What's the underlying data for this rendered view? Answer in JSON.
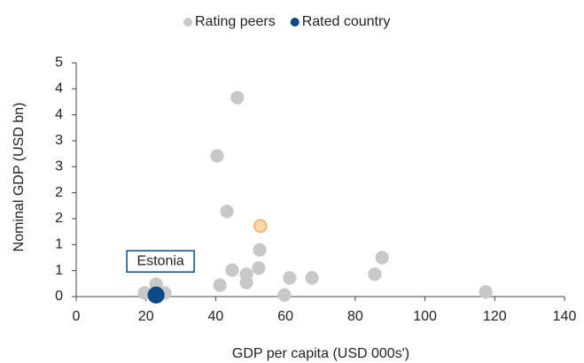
{
  "chart_data": {
    "type": "scatter",
    "xlabel": "GDP per capita (USD 000s')",
    "ylabel": "Nominal GDP (USD bn)",
    "xlim": [
      0,
      140
    ],
    "xticks": [
      0,
      20,
      40,
      60,
      80,
      100,
      120,
      140
    ],
    "ylim": [
      0,
      4.5
    ],
    "yticks": [
      0,
      {
        "value": 0.5,
        "label": "1"
      },
      1,
      {
        "value": 1.5,
        "label": "2"
      },
      2,
      {
        "value": 2.5,
        "label": "3"
      },
      3,
      {
        "value": 3.5,
        "label": "4"
      },
      4,
      {
        "value": 4.5,
        "label": "5"
      }
    ],
    "grid": false,
    "legend": "top",
    "series": [
      {
        "name": "Rating peers",
        "color": "#c8c8c8",
        "x": [
          46.2,
          40.4,
          43.2,
          52.6,
          87.7,
          44.7,
          52.3,
          48.8,
          85.6,
          67.6,
          61.2,
          41.2,
          48.8,
          22.9,
          19.6,
          25.4,
          59.7,
          117.4,
          52.8
        ],
        "values": [
          3.83,
          2.71,
          1.64,
          0.9,
          0.75,
          0.51,
          0.55,
          0.43,
          0.43,
          0.36,
          0.36,
          0.22,
          0.27,
          0.24,
          0.07,
          0.07,
          0.03,
          0.09,
          1.36
        ],
        "point_colors": [
          "#c8c8c8",
          "#c8c8c8",
          "#c8c8c8",
          "#c8c8c8",
          "#c8c8c8",
          "#c8c8c8",
          "#c8c8c8",
          "#c8c8c8",
          "#c8c8c8",
          "#c8c8c8",
          "#c8c8c8",
          "#c8c8c8",
          "#c8c8c8",
          "#c8c8c8",
          "#c8c8c8",
          "#c8c8c8",
          "#c8c8c8",
          "#c8c8c8",
          "#fbd7a8"
        ],
        "edge_colors": [
          "#c8c8c8",
          "#c8c8c8",
          "#c8c8c8",
          "#c8c8c8",
          "#c8c8c8",
          "#c8c8c8",
          "#c8c8c8",
          "#c8c8c8",
          "#c8c8c8",
          "#c8c8c8",
          "#c8c8c8",
          "#c8c8c8",
          "#c8c8c8",
          "#c8c8c8",
          "#c8c8c8",
          "#c8c8c8",
          "#c8c8c8",
          "#c8c8c8",
          "#f0a050"
        ]
      },
      {
        "name": "Rated country",
        "color": "#0b4a86",
        "x": [
          22.9
        ],
        "values": [
          0.03
        ],
        "annotation": "Estonia"
      }
    ]
  }
}
